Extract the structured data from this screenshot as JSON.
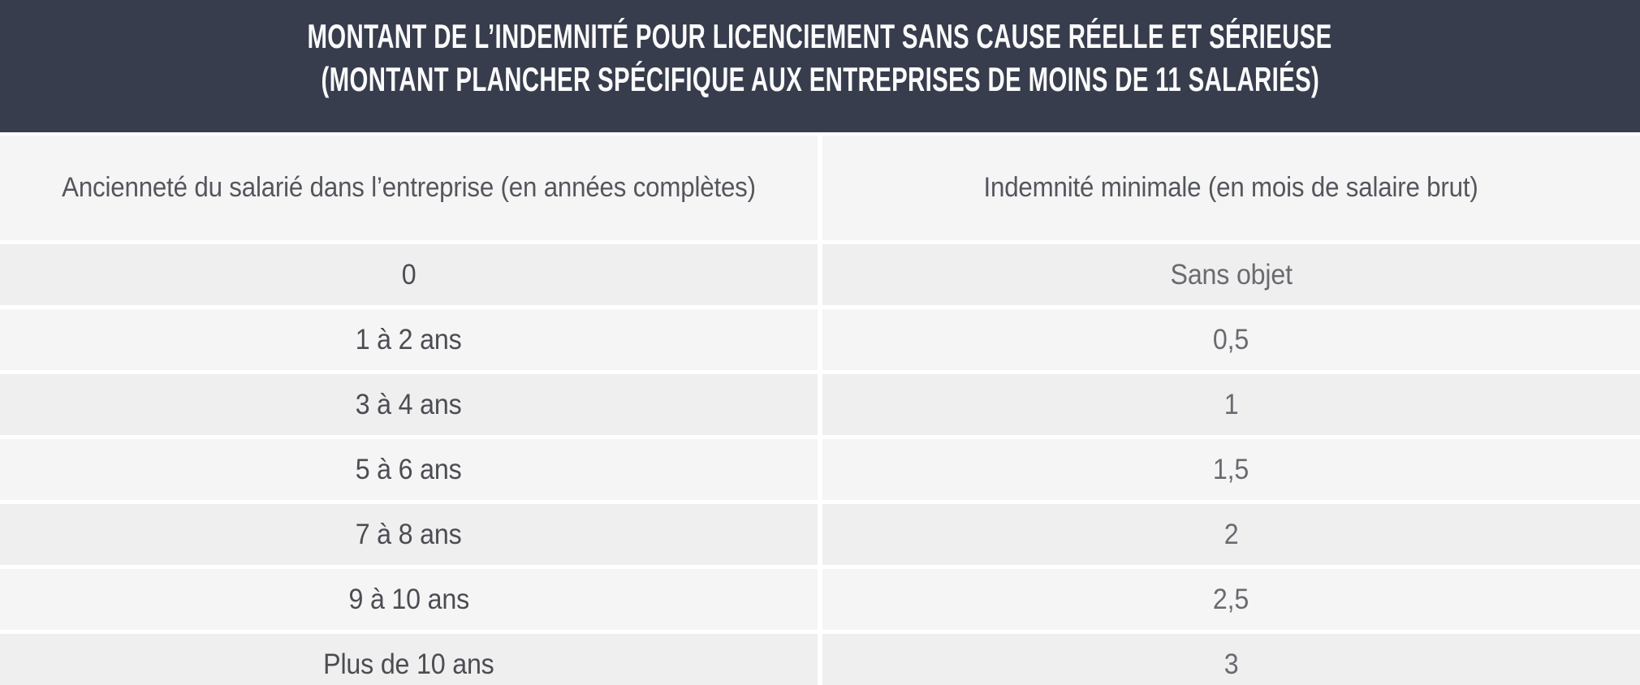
{
  "colors": {
    "band_bg": "#383d4d",
    "band_text": "#fbfbfc",
    "row_light": "#f5f5f6",
    "row_dark": "#efeff0",
    "header_text": "#54565c",
    "seniority_text": "#4b4d52",
    "value_text": "#696b70"
  },
  "header": {
    "title": "MONTANT DE L’INDEMNITÉ POUR LICENCIEMENT SANS CAUSE RÉELLE ET SÉRIEUSE",
    "subtitle": "(MONTANT PLANCHER SPÉCIFIQUE AUX ENTREPRISES DE MOINS DE 11 SALARIÉS)"
  },
  "table": {
    "columns": [
      {
        "label": "Ancienneté du salarié dans l’entreprise (en années complètes)"
      },
      {
        "label": "Indemnité minimale (en mois de salaire brut)"
      }
    ],
    "rows": [
      {
        "seniority": "0",
        "indemnity": "Sans objet"
      },
      {
        "seniority": "1 à 2 ans",
        "indemnity": "0,5"
      },
      {
        "seniority": "3 à 4 ans",
        "indemnity": "1"
      },
      {
        "seniority": "5 à 6 ans",
        "indemnity": "1,5"
      },
      {
        "seniority": "7 à 8 ans",
        "indemnity": "2"
      },
      {
        "seniority": "9 à 10 ans",
        "indemnity": "2,5"
      },
      {
        "seniority": "Plus de 10 ans",
        "indemnity": "3"
      }
    ]
  }
}
